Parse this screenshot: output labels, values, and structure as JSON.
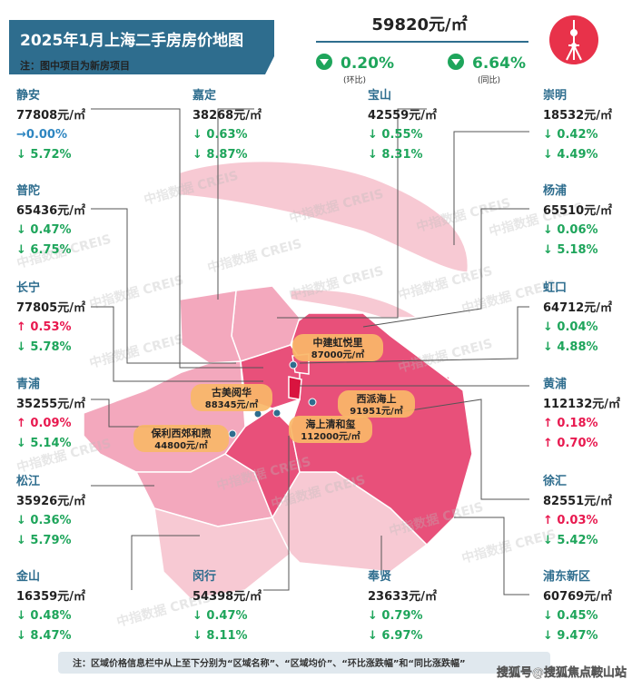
{
  "header": {
    "title": "2025年1月上海二手房房价地图",
    "note": "注：图中项目为新房项目",
    "price": "59820元/㎡",
    "mom": "0.20%",
    "mom_label": "(环比)",
    "yoy": "6.64%",
    "yoy_label": "(同比)"
  },
  "districts": [
    {
      "name": "静安",
      "price": "77808元/㎡",
      "mom": "→0.00%",
      "yoy": "↓ 5.72%"
    },
    {
      "name": "嘉定",
      "price": "38268元/㎡",
      "mom": "↓ 0.63%",
      "yoy": "↓ 8.87%"
    },
    {
      "name": "宝山",
      "price": "42559元/㎡",
      "mom": "↓ 0.55%",
      "yoy": "↓ 8.31%"
    },
    {
      "name": "崇明",
      "price": "18532元/㎡",
      "mom": "↓ 0.42%",
      "yoy": "↓ 4.49%"
    },
    {
      "name": "普陀",
      "price": "65436元/㎡",
      "mom": "↓ 0.47%",
      "yoy": "↓ 6.75%"
    },
    {
      "name": "杨浦",
      "price": "65510元/㎡",
      "mom": "↓ 0.06%",
      "yoy": "↓ 5.18%"
    },
    {
      "name": "长宁",
      "price": "77805元/㎡",
      "mom": "↑ 0.53%",
      "yoy": "↓ 5.78%"
    },
    {
      "name": "虹口",
      "price": "64712元/㎡",
      "mom": "↓ 0.04%",
      "yoy": "↓ 4.88%"
    },
    {
      "name": "青浦",
      "price": "35255元/㎡",
      "mom": "↑ 0.09%",
      "yoy": "↓ 5.14%"
    },
    {
      "name": "黄浦",
      "price": "112132元/㎡",
      "mom": "↑ 0.18%",
      "yoy": "↑ 0.70%"
    },
    {
      "name": "松江",
      "price": "35926元/㎡",
      "mom": "↓ 0.36%",
      "yoy": "↓ 5.79%"
    },
    {
      "name": "徐汇",
      "price": "82551元/㎡",
      "mom": "↑ 0.03%",
      "yoy": "↓ 5.42%"
    },
    {
      "name": "金山",
      "price": "16359元/㎡",
      "mom": "↓ 0.48%",
      "yoy": "↓ 8.47%"
    },
    {
      "name": "闵行",
      "price": "54398元/㎡",
      "mom": "↓ 0.47%",
      "yoy": "↓ 8.11%"
    },
    {
      "name": "奉贤",
      "price": "23633元/㎡",
      "mom": "↓ 0.79%",
      "yoy": "↓ 6.97%"
    },
    {
      "name": "浦东新区",
      "price": "60769元/㎡",
      "mom": "↓ 0.45%",
      "yoy": "↓ 9.47%"
    }
  ],
  "projects": [
    {
      "name": "中建虹悦里",
      "price": "87000元/㎡"
    },
    {
      "name": "古美阅华",
      "price": "88345元/㎡"
    },
    {
      "name": "西派海上",
      "price": "91951元/㎡"
    },
    {
      "name": "海上清和玺",
      "price": "112000元/㎡"
    },
    {
      "name": "保利西郊和煦",
      "price": "44800元/㎡"
    }
  ],
  "watermark": "中指数据 CREIS",
  "footer": {
    "note": "注：区域价格信息栏中从上至下分别为“区域名称”、“区域均价”、“环比涨跌幅”和“同比涨跌幅”",
    "credit": "搜狐号@搜狐焦点鞍山站"
  }
}
